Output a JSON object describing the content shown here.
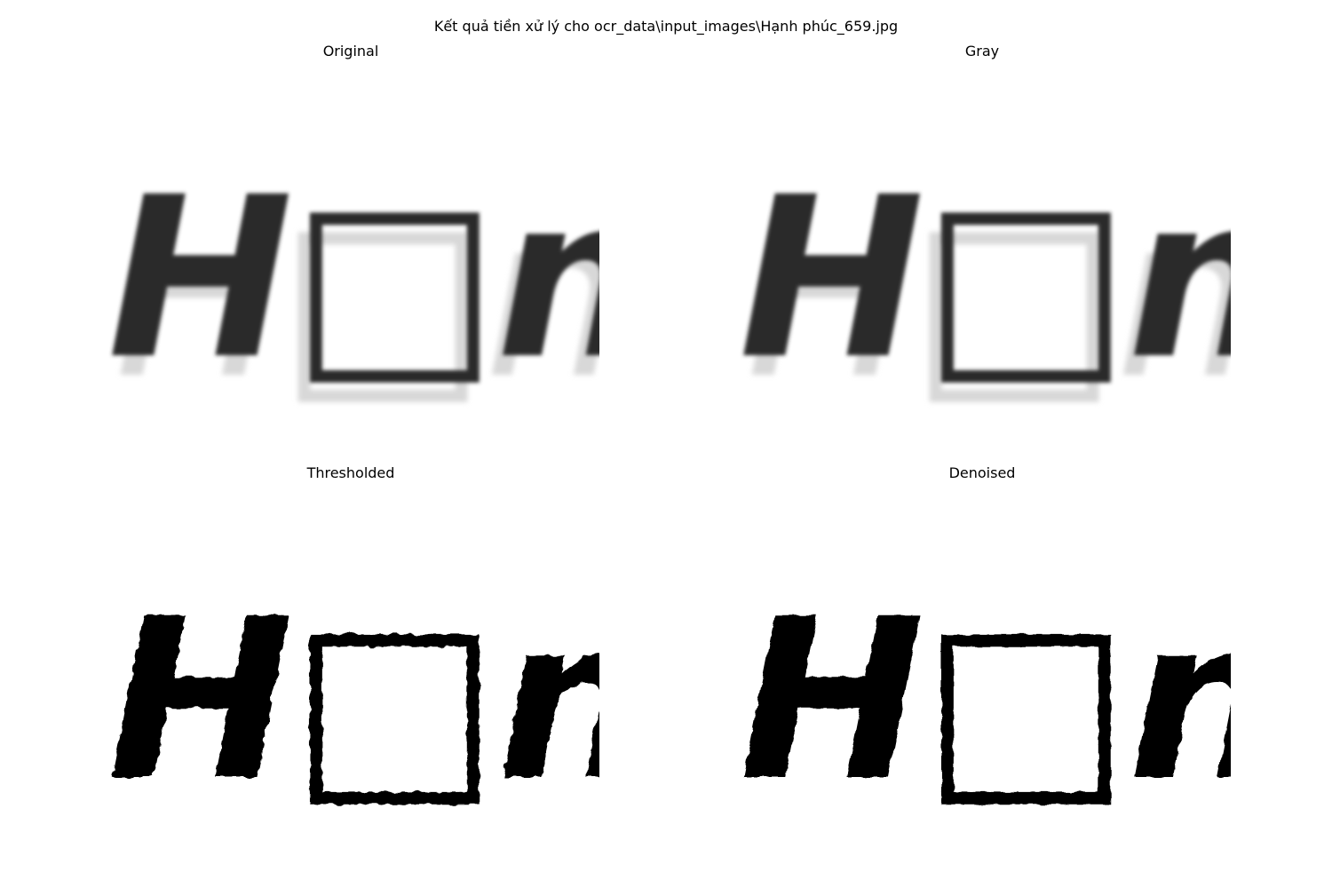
{
  "figure": {
    "title": "Kết quả tiền xử lý cho ocr_data\\input_images\\Hạnh phúc_659.jpg"
  },
  "panels": [
    {
      "title": "Original",
      "image_text": "H□nh phúc",
      "style": "blurred-gray"
    },
    {
      "title": "Gray",
      "image_text": "H□nh phúc",
      "style": "blurred-gray"
    },
    {
      "title": "Thresholded",
      "image_text": "H□nh phúc",
      "style": "binary"
    },
    {
      "title": "Denoised",
      "image_text": "H□nh phúc",
      "style": "binary"
    }
  ],
  "colors": {
    "background": "#ffffff",
    "ink": "#000000",
    "gray_ink": "#2a2a2a"
  }
}
